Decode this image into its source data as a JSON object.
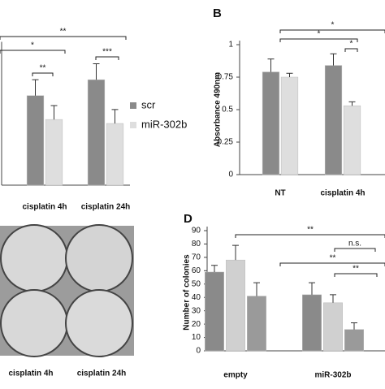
{
  "chart_data": [
    {
      "type": "bar",
      "ylim": [
        0,
        7
      ],
      "categories": [
        "cisplatin 4h",
        "cisplatin 24h"
      ],
      "series": [
        {
          "name": "scr",
          "color": "#8a8a8a",
          "values": [
            4.5,
            5.3
          ],
          "errors": [
            0.8,
            0.8
          ]
        },
        {
          "name": "miR-302b",
          "color": "#dedede",
          "values": [
            3.3,
            3.1
          ],
          "errors": [
            0.7,
            0.7
          ]
        }
      ],
      "annotations": [
        "**",
        "*",
        "**",
        "***"
      ]
    },
    {
      "type": "bar",
      "panel_label": "B",
      "y_label": "Absorbance 490nm",
      "ylim": [
        0,
        1
      ],
      "yticks": [
        0,
        {
          "value": 0.25,
          "label": "0.25"
        },
        {
          "value": 0.5,
          "label": "0.5"
        },
        {
          "value": 0.75,
          "label": "0.75"
        },
        1
      ],
      "categories": [
        "NT",
        "cisplatin 4h"
      ],
      "series": [
        {
          "color": "#8a8a8a",
          "values": [
            0.79,
            0.84
          ],
          "errors": [
            0.1,
            0.09
          ]
        },
        {
          "color": "#dedede",
          "values": [
            0.75,
            0.53
          ],
          "errors": [
            0.03,
            0.03
          ]
        }
      ],
      "annotations": [
        "*",
        "*",
        "*"
      ]
    },
    {
      "type": "bar",
      "panel_label": "D",
      "y_label": "Number of colonies",
      "ylim": [
        0,
        90
      ],
      "yticks": [
        0,
        10,
        20,
        30,
        40,
        50,
        60,
        70,
        80,
        90
      ],
      "categories": [
        "empty",
        "miR-302b"
      ],
      "series": [
        {
          "color": "#8a8a8a",
          "values": [
            59,
            42
          ],
          "errors": [
            5,
            9
          ]
        },
        {
          "color": "#d0d0d0",
          "values": [
            68,
            36
          ],
          "errors": [
            11,
            6
          ]
        },
        {
          "color": "#9a9a9a",
          "values": [
            41,
            16
          ],
          "errors": [
            10,
            5
          ]
        }
      ],
      "annotations": [
        "**",
        "n.s.",
        "**",
        "**"
      ]
    }
  ],
  "image_panel": {
    "labels": [
      "cisplatin 4h",
      "cisplatin 24h"
    ]
  }
}
